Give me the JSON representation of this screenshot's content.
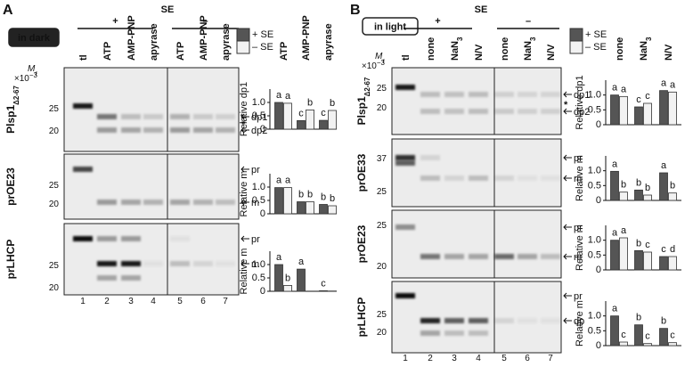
{
  "panels": [
    {
      "label": "A",
      "badge": "in dark",
      "treatment": "SE",
      "plus": "+",
      "minus": "–",
      "mr": {
        "base": "M",
        "sub": "r"
      },
      "scale": {
        "base": "×10",
        "sup": "−3"
      },
      "lanes": [
        "tl",
        "ATP",
        "AMP-PNP",
        "apyrase",
        "ATP",
        "AMP-PNP",
        "apyrase"
      ],
      "lane_numbers": [
        "1",
        "2",
        "3",
        "4",
        "5",
        "6",
        "7"
      ],
      "blots": [
        {
          "name": {
            "base": "Plsp1",
            "sub": "Δ2-67"
          },
          "markers": [
            "25",
            "20"
          ],
          "bands": [
            "dp1",
            "*",
            "dp2"
          ]
        },
        {
          "name": "prOE23",
          "markers": [
            "25",
            "20"
          ],
          "bands": [
            "pr",
            "m"
          ]
        },
        {
          "name": "prLHCP",
          "markers": [
            "25",
            "20"
          ],
          "bands": [
            "pr",
            "m"
          ]
        }
      ],
      "categories": [
        "ATP",
        "AMP-PNP",
        "apyrase"
      ],
      "charts": [
        {
          "ylabel": "Relative dp1",
          "ylim": [
            0,
            1.5
          ],
          "yticks": [
            0,
            0.5,
            {
              "value": 1,
              "label": "1.0"
            }
          ],
          "series": [
            {
              "name": "+ SE",
              "color": "#555555",
              "values": [
                1.0,
                0.32,
                0.33
              ],
              "letters": [
                "a",
                "c",
                "c"
              ]
            },
            {
              "name": "– SE",
              "color": "#f2f2f2",
              "values": [
                0.97,
                0.72,
                0.7
              ],
              "letters": [
                "a",
                "b",
                "b"
              ]
            }
          ]
        },
        {
          "ylabel": "Relative m",
          "ylim": [
            0,
            1.5
          ],
          "yticks": [
            0,
            0.5,
            {
              "value": 1,
              "label": "1.0"
            }
          ],
          "series": [
            {
              "name": "+ SE",
              "color": "#555555",
              "values": [
                0.98,
                0.45,
                0.35
              ],
              "letters": [
                "a",
                "b",
                "b"
              ]
            },
            {
              "name": "– SE",
              "color": "#f2f2f2",
              "values": [
                0.98,
                0.45,
                0.3
              ],
              "letters": [
                "a",
                "b",
                "b"
              ]
            }
          ]
        },
        {
          "ylabel": "Relative m",
          "ylim": [
            0,
            1.5
          ],
          "yticks": [
            0,
            0.5,
            {
              "value": 1,
              "label": "1.0"
            }
          ],
          "series": [
            {
              "name": "+ SE",
              "color": "#555555",
              "values": [
                1.0,
                0.83,
                0.02
              ],
              "letters": [
                "a",
                "a",
                "c"
              ]
            },
            {
              "name": "– SE",
              "color": "#f2f2f2",
              "values": [
                0.22,
                0,
                0.01
              ],
              "letters": [
                "b",
                null,
                null
              ]
            }
          ]
        }
      ]
    },
    {
      "label": "B",
      "badge": "in light",
      "treatment": "SE",
      "plus": "+",
      "minus": "–",
      "mr": {
        "base": "M",
        "sub": "r"
      },
      "scale": {
        "base": "×10",
        "sup": "−3"
      },
      "lanes": [
        "tl",
        "none",
        {
          "base": "NaN",
          "sub": "3"
        },
        "N/V",
        "none",
        {
          "base": "NaN",
          "sub": "3"
        },
        "N/V"
      ],
      "lane_numbers": [
        "1",
        "2",
        "3",
        "4",
        "5",
        "6",
        "7"
      ],
      "blots": [
        {
          "name": {
            "base": "Plsp1",
            "sub": "Δ2-67"
          },
          "markers": [
            "25",
            "20"
          ],
          "bands": [
            "dp1",
            "*",
            "dp2"
          ]
        },
        {
          "name": "prOE33",
          "markers": [
            "37",
            "25"
          ],
          "bands": [
            "pr",
            "m"
          ]
        },
        {
          "name": "prOE23",
          "markers": [
            "25",
            "20"
          ],
          "bands": [
            "pr",
            "m"
          ]
        },
        {
          "name": "prLHCP",
          "markers": [
            "25",
            "20"
          ],
          "bands": [
            "pr",
            "dp"
          ]
        }
      ],
      "categories": [
        "none",
        {
          "base": "NaN",
          "sub": "3"
        },
        "N/V"
      ],
      "charts": [
        {
          "ylabel": "Relative dp1",
          "ylim": [
            0,
            1.5
          ],
          "yticks": [
            0,
            0.5,
            {
              "value": 1,
              "label": "1.0"
            }
          ],
          "series": [
            {
              "name": "+ SE",
              "color": "#555555",
              "values": [
                1.0,
                0.6,
                1.15
              ],
              "letters": [
                "a",
                "c",
                "a"
              ]
            },
            {
              "name": "– SE",
              "color": "#f2f2f2",
              "values": [
                0.95,
                0.72,
                1.1
              ],
              "letters": [
                "a",
                "c",
                "a"
              ]
            }
          ]
        },
        {
          "ylabel": "Relative m",
          "ylim": [
            0,
            1.5
          ],
          "yticks": [
            0,
            0.5,
            {
              "value": 1,
              "label": "1.0"
            }
          ],
          "series": [
            {
              "name": "+ SE",
              "color": "#555555",
              "values": [
                0.98,
                0.35,
                0.93
              ],
              "letters": [
                "a",
                "b",
                "a"
              ]
            },
            {
              "name": "– SE",
              "color": "#f2f2f2",
              "values": [
                0.28,
                0.18,
                0.25
              ],
              "letters": [
                "b",
                "b",
                "b"
              ]
            }
          ]
        },
        {
          "ylabel": "Relative m",
          "ylim": [
            0,
            1.5
          ],
          "yticks": [
            0,
            0.5,
            {
              "value": 1,
              "label": "1.0"
            }
          ],
          "series": [
            {
              "name": "+ SE",
              "color": "#555555",
              "values": [
                1.0,
                0.65,
                0.45
              ],
              "letters": [
                "a",
                "b",
                "c"
              ]
            },
            {
              "name": "– SE",
              "color": "#f2f2f2",
              "values": [
                1.08,
                0.6,
                0.45
              ],
              "letters": [
                "a",
                "c",
                "d"
              ]
            }
          ]
        },
        {
          "ylabel": "Relative m",
          "ylim": [
            0,
            1.5
          ],
          "yticks": [
            0,
            0.5,
            {
              "value": 1,
              "label": "1.0"
            }
          ],
          "series": [
            {
              "name": "+ SE",
              "color": "#555555",
              "values": [
                1.0,
                0.7,
                0.58
              ],
              "letters": [
                "a",
                "b",
                "b"
              ]
            },
            {
              "name": "– SE",
              "color": "#f2f2f2",
              "values": [
                0.12,
                0.07,
                0.1
              ],
              "letters": [
                "c",
                "c",
                "c"
              ]
            }
          ]
        }
      ]
    }
  ]
}
